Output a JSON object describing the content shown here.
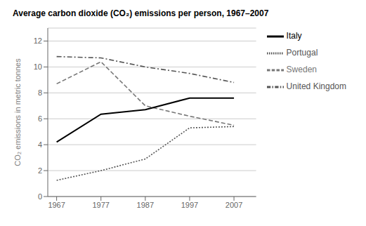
{
  "chart_data": {
    "type": "line",
    "title": "Average carbon dioxide (CO₂) emissions per person, 1967–2007",
    "y_label": "CO₂ emissions in metric tonnes",
    "x": [
      1967,
      1977,
      1987,
      1997,
      2007
    ],
    "series": [
      {
        "name": "United Kingdom",
        "color": "#555555",
        "line_style": "dashdot",
        "values": [
          10.8,
          10.7,
          10.0,
          9.5,
          8.8
        ]
      },
      {
        "name": "Sweden",
        "color": "#777777",
        "line_style": "dashed",
        "values": [
          8.7,
          10.4,
          7.0,
          6.2,
          5.5
        ]
      },
      {
        "name": "Italy",
        "color": "#000000",
        "line_style": "solid",
        "values": [
          4.2,
          6.35,
          6.7,
          7.6,
          7.6
        ]
      },
      {
        "name": "Portugal",
        "color": "#555555",
        "line_style": "dotted",
        "values": [
          1.25,
          2.0,
          2.9,
          5.3,
          5.4
        ]
      }
    ],
    "xlim": [
      1965,
      2012
    ],
    "xticks": [
      1967,
      1977,
      1987,
      1997,
      2007
    ],
    "ylim": [
      0,
      13
    ],
    "yticks": [
      0,
      2,
      4,
      6,
      8,
      10,
      12
    ],
    "grid": true,
    "legend": "right"
  }
}
